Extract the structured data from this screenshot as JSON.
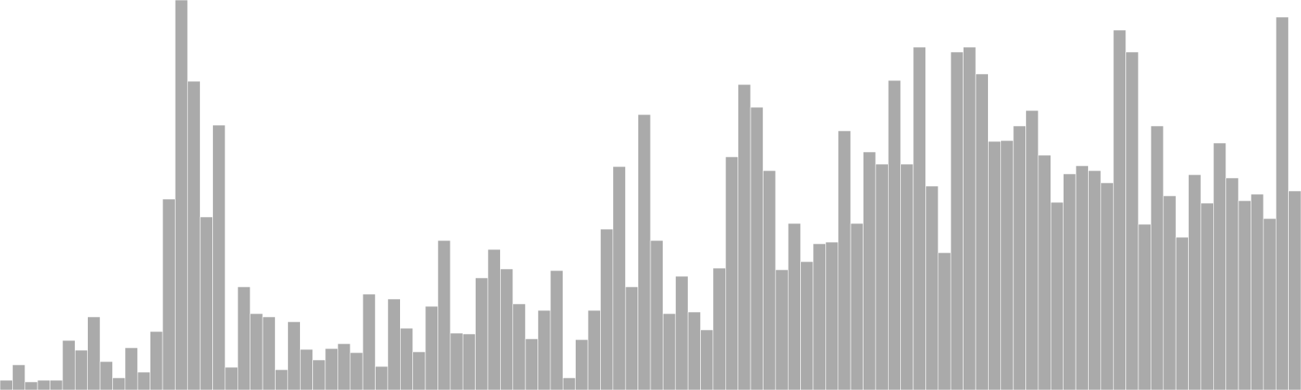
{
  "chart_data": {
    "type": "bar",
    "title": "",
    "xlabel": "",
    "ylabel": "",
    "ylim": [
      0,
      480
    ],
    "grid": false,
    "legend": "none",
    "bar_color": "#aaaaaa",
    "bar_edge_color": "#ffffff",
    "background_color": "#ffffff",
    "values": [
      12,
      31,
      10,
      12,
      12,
      61,
      49,
      90,
      35,
      15,
      52,
      22,
      72,
      235,
      480,
      380,
      213,
      326,
      28,
      127,
      94,
      90,
      25,
      84,
      50,
      37,
      51,
      57,
      46,
      118,
      29,
      112,
      76,
      47,
      103,
      184,
      70,
      69,
      138,
      173,
      149,
      106,
      63,
      98,
      147,
      15,
      62,
      98,
      198,
      275,
      127,
      339,
      184,
      94,
      140,
      96,
      74,
      150,
      287,
      376,
      348,
      270,
      148,
      205,
      158,
      180,
      182,
      319,
      205,
      293,
      278,
      381,
      278,
      422,
      251,
      169,
      416,
      422,
      389,
      306,
      307,
      325,
      344,
      289,
      231,
      266,
      276,
      270,
      255,
      443,
      416,
      204,
      325,
      239,
      188,
      265,
      230,
      304,
      261,
      233,
      241,
      211,
      459,
      245
    ]
  }
}
